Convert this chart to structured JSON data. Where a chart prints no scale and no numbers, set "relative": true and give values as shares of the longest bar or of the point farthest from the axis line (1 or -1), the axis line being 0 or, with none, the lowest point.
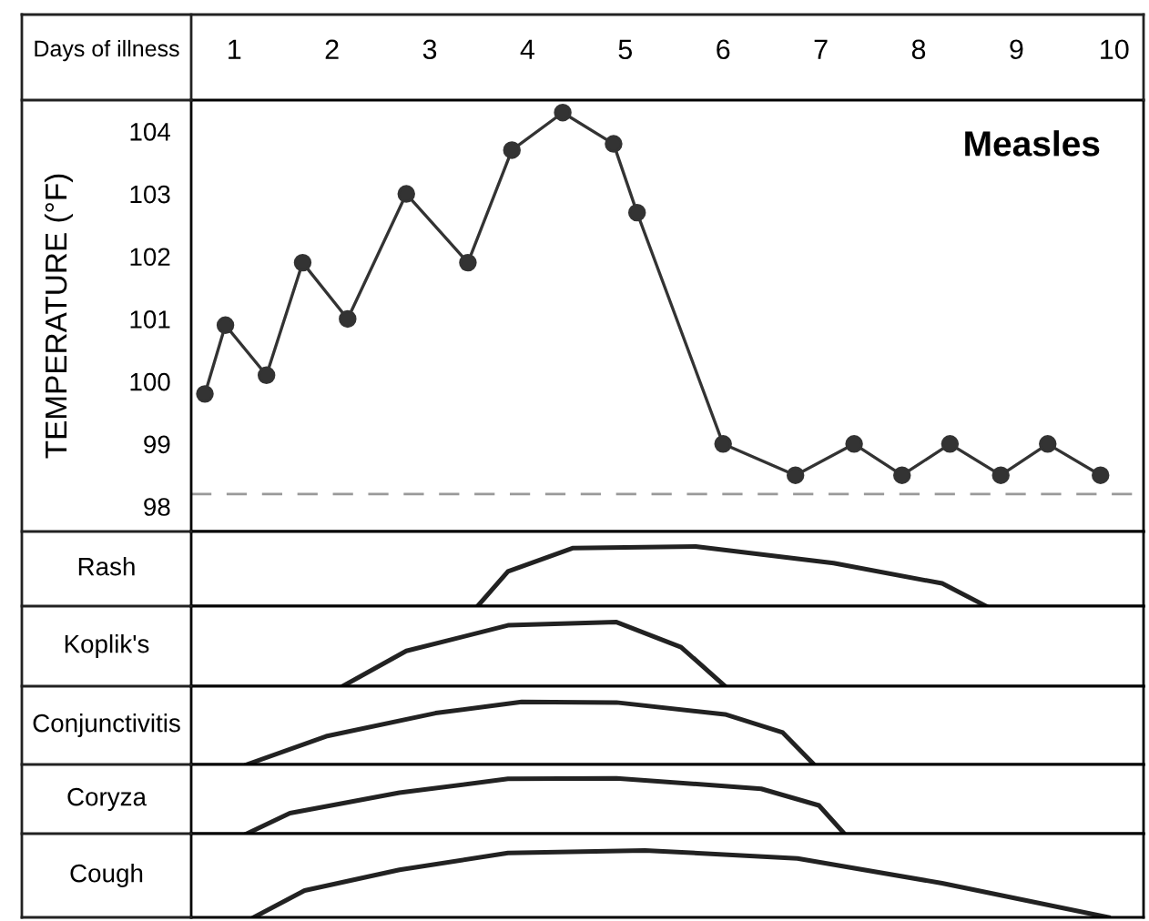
{
  "chart_data": [
    {
      "type": "line",
      "title": "Measles",
      "xlabel": "Days of illness",
      "ylabel": "TEMPERATURE (°F)",
      "marker": "circle",
      "line_style": "solid",
      "grid": false,
      "legend": false,
      "x": [
        0.7,
        0.91,
        1.33,
        1.7,
        2.16,
        2.76,
        3.39,
        3.84,
        4.36,
        4.88,
        5.12,
        6.0,
        6.74,
        7.34,
        7.83,
        8.32,
        8.84,
        9.32,
        9.86
      ],
      "series": [
        {
          "color": "#333333",
          "values": [
            99.8,
            100.9,
            100.1,
            101.9,
            101.0,
            103.0,
            101.9,
            103.7,
            104.3,
            103.8,
            102.7,
            99.0,
            98.5,
            99.0,
            98.5,
            99.0,
            98.5,
            99.0,
            98.5
          ]
        }
      ],
      "xlim": [
        0.56,
        10.3
      ],
      "xticks": [
        1,
        2,
        3,
        4,
        5,
        6,
        7,
        8,
        9,
        10
      ],
      "ylim": [
        97.6,
        104.5
      ],
      "yticks": [
        98,
        99,
        100,
        101,
        102,
        103,
        104
      ],
      "ref_lines": [
        {
          "axis": "y",
          "value": 98.2,
          "color": "#999999",
          "line_style": "dashed"
        }
      ]
    },
    {
      "type": "line",
      "ylabel": "Rash",
      "relative": true,
      "xlim": [
        0.56,
        10.3
      ],
      "series": [
        {
          "color": "#222222",
          "x": [
            3.49,
            3.8,
            4.46,
            5.72,
            7.13,
            8.24,
            8.69
          ],
          "values": [
            0,
            0.58,
            0.97,
            1.0,
            0.72,
            0.38,
            0
          ]
        }
      ]
    },
    {
      "type": "line",
      "ylabel": "Koplik's",
      "relative": true,
      "xlim": [
        0.56,
        10.3
      ],
      "series": [
        {
          "color": "#222222",
          "x": [
            2.11,
            2.76,
            3.8,
            4.91,
            5.57,
            6.02
          ],
          "values": [
            0,
            0.55,
            0.95,
            1.0,
            0.61,
            0
          ]
        }
      ]
    },
    {
      "type": "line",
      "ylabel": "Conjunctivitis",
      "relative": true,
      "xlim": [
        0.56,
        10.3
      ],
      "series": [
        {
          "color": "#222222",
          "x": [
            1.13,
            1.94,
            3.06,
            3.94,
            4.91,
            6.02,
            6.61,
            6.93
          ],
          "values": [
            0,
            0.45,
            0.82,
            1.0,
            0.99,
            0.8,
            0.51,
            0
          ]
        }
      ]
    },
    {
      "type": "line",
      "ylabel": "Coryza",
      "relative": true,
      "xlim": [
        0.56,
        10.3
      ],
      "series": [
        {
          "color": "#222222",
          "x": [
            1.13,
            1.57,
            2.69,
            3.8,
            4.91,
            6.39,
            6.98,
            7.24
          ],
          "values": [
            0,
            0.37,
            0.74,
            0.99,
            1.0,
            0.81,
            0.51,
            0
          ]
        }
      ]
    },
    {
      "type": "line",
      "ylabel": "Cough",
      "relative": true,
      "xlim": [
        0.56,
        10.3
      ],
      "series": [
        {
          "color": "#222222",
          "x": [
            1.2,
            1.72,
            2.69,
            3.8,
            5.2,
            6.76,
            8.24,
            9.94
          ],
          "values": [
            0,
            0.4,
            0.71,
            0.96,
            1.0,
            0.88,
            0.51,
            0
          ]
        }
      ]
    }
  ]
}
